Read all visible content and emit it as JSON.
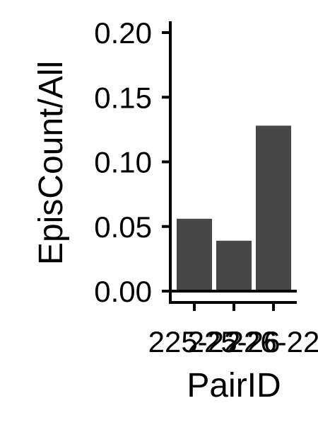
{
  "chart_data": {
    "type": "bar",
    "categories": [
      "225-22",
      "225-26",
      "226-22"
    ],
    "values": [
      0.056,
      0.039,
      0.128
    ],
    "xlabel": "PairID",
    "ylabel": "EpisCount/All",
    "ylim": [
      0,
      0.2
    ],
    "yticks": [
      "0.00",
      "0.05",
      "0.10",
      "0.15",
      "0.20"
    ],
    "ytick_values": [
      0,
      0.05,
      0.1,
      0.15,
      0.2
    ],
    "bar_color": "#474747",
    "grid": false,
    "legend": "none"
  }
}
